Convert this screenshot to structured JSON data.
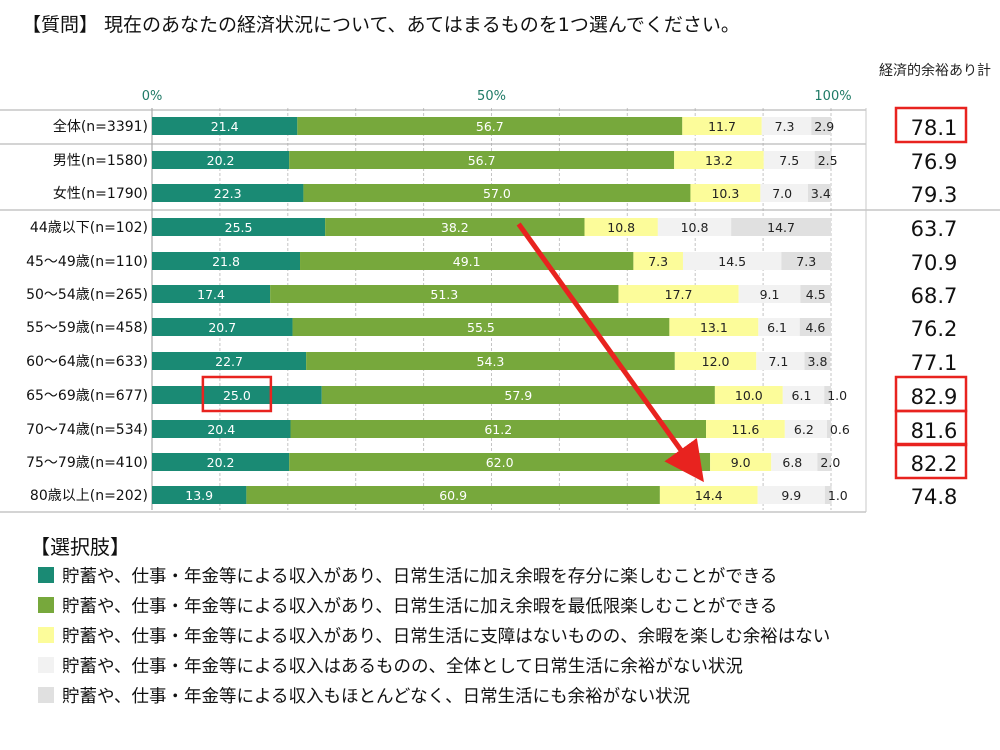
{
  "question": "【質問】 現在のあなたの経済状況について、あてはまるものを1つ選んでください。",
  "summary_header": "経済的余裕あり計",
  "legend_title": "【選択肢】",
  "colors": [
    "#1a8a74",
    "#77a83c",
    "#fcfc9a",
    "#f2f2f2",
    "#e0e0e0"
  ],
  "chart_data": {
    "type": "bar",
    "orientation": "horizontal",
    "stacked": "percent",
    "xlim": [
      0,
      100
    ],
    "x_ticks": [
      "0%",
      "50%",
      "100%"
    ],
    "categories": [
      "全体(n=3391)",
      "男性(n=1580)",
      "女性(n=1790)",
      "44歳以下(n=102)",
      "45～49歳(n=110)",
      "50～54歳(n=265)",
      "55～59歳(n=458)",
      "60～64歳(n=633)",
      "65～69歳(n=677)",
      "70～74歳(n=534)",
      "75～79歳(n=410)",
      "80歳以上(n=202)"
    ],
    "series": [
      {
        "name": "貯蓄や、仕事・年金等による収入があり、日常生活に加え余暇を存分に楽しむことができる",
        "values": [
          21.4,
          20.2,
          22.3,
          25.5,
          21.8,
          17.4,
          20.7,
          22.7,
          25.0,
          20.4,
          20.2,
          13.9
        ],
        "labels": [
          "21.4",
          "20.2",
          "22.3",
          "25.5",
          "21.8",
          "17.4",
          "20.7",
          "22.7",
          "25.0",
          "20.4",
          "20.2",
          "13.9"
        ]
      },
      {
        "name": "貯蓄や、仕事・年金等による収入があり、日常生活に加え余暇を最低限楽しむことができる",
        "values": [
          56.7,
          56.7,
          57.0,
          38.2,
          49.1,
          51.3,
          55.5,
          54.3,
          57.9,
          61.2,
          62.0,
          60.9
        ],
        "labels": [
          "56.7",
          "56.7",
          "57.0",
          "38.2",
          "49.1",
          "51.3",
          "55.5",
          "54.3",
          "57.9",
          "61.2",
          "62.0",
          "60.9"
        ]
      },
      {
        "name": "貯蓄や、仕事・年金等による収入があり、日常生活に支障はないものの、余暇を楽しむ余裕はない",
        "values": [
          11.7,
          13.2,
          10.3,
          10.8,
          7.3,
          17.7,
          13.1,
          12.0,
          10.0,
          11.6,
          9.0,
          14.4
        ],
        "labels": [
          "11.7",
          "13.2",
          "10.3",
          "10.8",
          "7.3",
          "17.7",
          "13.1",
          "12.0",
          "10.0",
          "11.6",
          "9.0",
          "14.4"
        ]
      },
      {
        "name": "貯蓄や、仕事・年金等による収入はあるものの、全体として日常生活に余裕がない状況",
        "values": [
          7.3,
          7.5,
          7.0,
          10.8,
          14.5,
          9.1,
          6.1,
          7.1,
          6.1,
          6.2,
          6.8,
          9.9
        ],
        "labels": [
          "7.3",
          "7.5",
          "7.0",
          "10.8",
          "14.5",
          "9.1",
          "6.1",
          "7.1",
          "6.1",
          "6.2",
          "6.8",
          "9.9"
        ]
      },
      {
        "name": "貯蓄や、仕事・年金等による収入もほとんどなく、日常生活にも余裕がない状況",
        "values": [
          2.9,
          2.5,
          3.4,
          14.7,
          7.3,
          4.5,
          4.6,
          3.8,
          1.0,
          0.6,
          2.0,
          1.0
        ],
        "labels": [
          "2.9",
          "2.5",
          "3.4",
          "14.7",
          "7.3",
          "4.5",
          "4.6",
          "3.8",
          "1.0",
          "0.6",
          "2.0",
          "1.0"
        ]
      }
    ],
    "totals": [
      "78.1",
      "76.9",
      "79.3",
      "63.7",
      "70.9",
      "68.7",
      "76.2",
      "77.1",
      "82.9",
      "81.6",
      "82.2",
      "74.8"
    ],
    "highlighted_totals": [
      0,
      8,
      9,
      10
    ],
    "highlighted_label": {
      "row": 8,
      "series": 0
    },
    "annotation": {
      "type": "arrow",
      "color": "#e8231f",
      "from": {
        "row": 3,
        "value": 54
      },
      "to": {
        "row": 10,
        "value": 80
      }
    },
    "legend_placement": "bottom"
  }
}
